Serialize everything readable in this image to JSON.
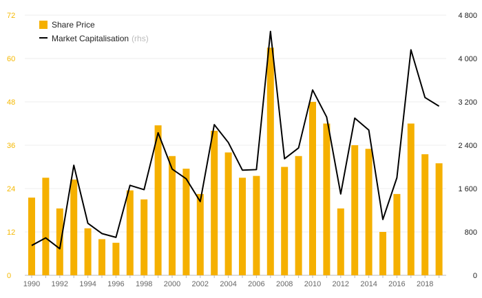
{
  "chart_data": {
    "type": "bar+line",
    "title": "",
    "x": [
      1990,
      1991,
      1992,
      1993,
      1994,
      1995,
      1996,
      1997,
      1998,
      1999,
      2000,
      2001,
      2002,
      2003,
      2004,
      2005,
      2006,
      2007,
      2008,
      2009,
      2010,
      2011,
      2012,
      2013,
      2014,
      2015,
      2016,
      2017,
      2018,
      2019
    ],
    "x_tick_labels": [
      "1990",
      "1992",
      "1994",
      "1996",
      "1998",
      "2000",
      "2002",
      "2004",
      "2006",
      "2008",
      "2010",
      "2012",
      "2014",
      "2016",
      "2018"
    ],
    "series": [
      {
        "name": "Share Price",
        "axis": "left",
        "type": "bar",
        "color": "#f5b000",
        "values": [
          21.5,
          27.0,
          18.5,
          26.5,
          13.0,
          10.0,
          9.0,
          23.5,
          21.0,
          41.5,
          33.0,
          29.5,
          22.5,
          40.0,
          34.0,
          27.0,
          27.5,
          63.0,
          30.0,
          33.0,
          48.0,
          42.0,
          18.5,
          36.0,
          35.0,
          12.0,
          22.5,
          42.0,
          33.5,
          31.0
        ]
      },
      {
        "name": "Market Capitalisation",
        "name_note": "(rhs)",
        "axis": "right",
        "type": "line",
        "color": "#000000",
        "values": [
          550,
          690,
          490,
          2030,
          960,
          770,
          700,
          1660,
          1580,
          2630,
          1960,
          1780,
          1360,
          2780,
          2450,
          1940,
          1950,
          4500,
          2150,
          2350,
          3420,
          2920,
          1500,
          2900,
          2680,
          1030,
          1800,
          4160,
          3280,
          3120
        ]
      }
    ],
    "y_left": {
      "lim": [
        0,
        72
      ],
      "ticks": [
        "0",
        "12",
        "24",
        "36",
        "48",
        "60",
        "72"
      ],
      "color": "#f5b800"
    },
    "y_right": {
      "lim": [
        0,
        4800
      ],
      "ticks": [
        "0",
        "800",
        "1 600",
        "2 400",
        "3 200",
        "4 000",
        "4 800"
      ],
      "color": "#222222"
    },
    "legend": {
      "position": "top-left",
      "items": [
        {
          "label": "Share Price",
          "note": ""
        },
        {
          "label": "Market Capitalisation",
          "note": "(rhs)"
        }
      ]
    }
  }
}
